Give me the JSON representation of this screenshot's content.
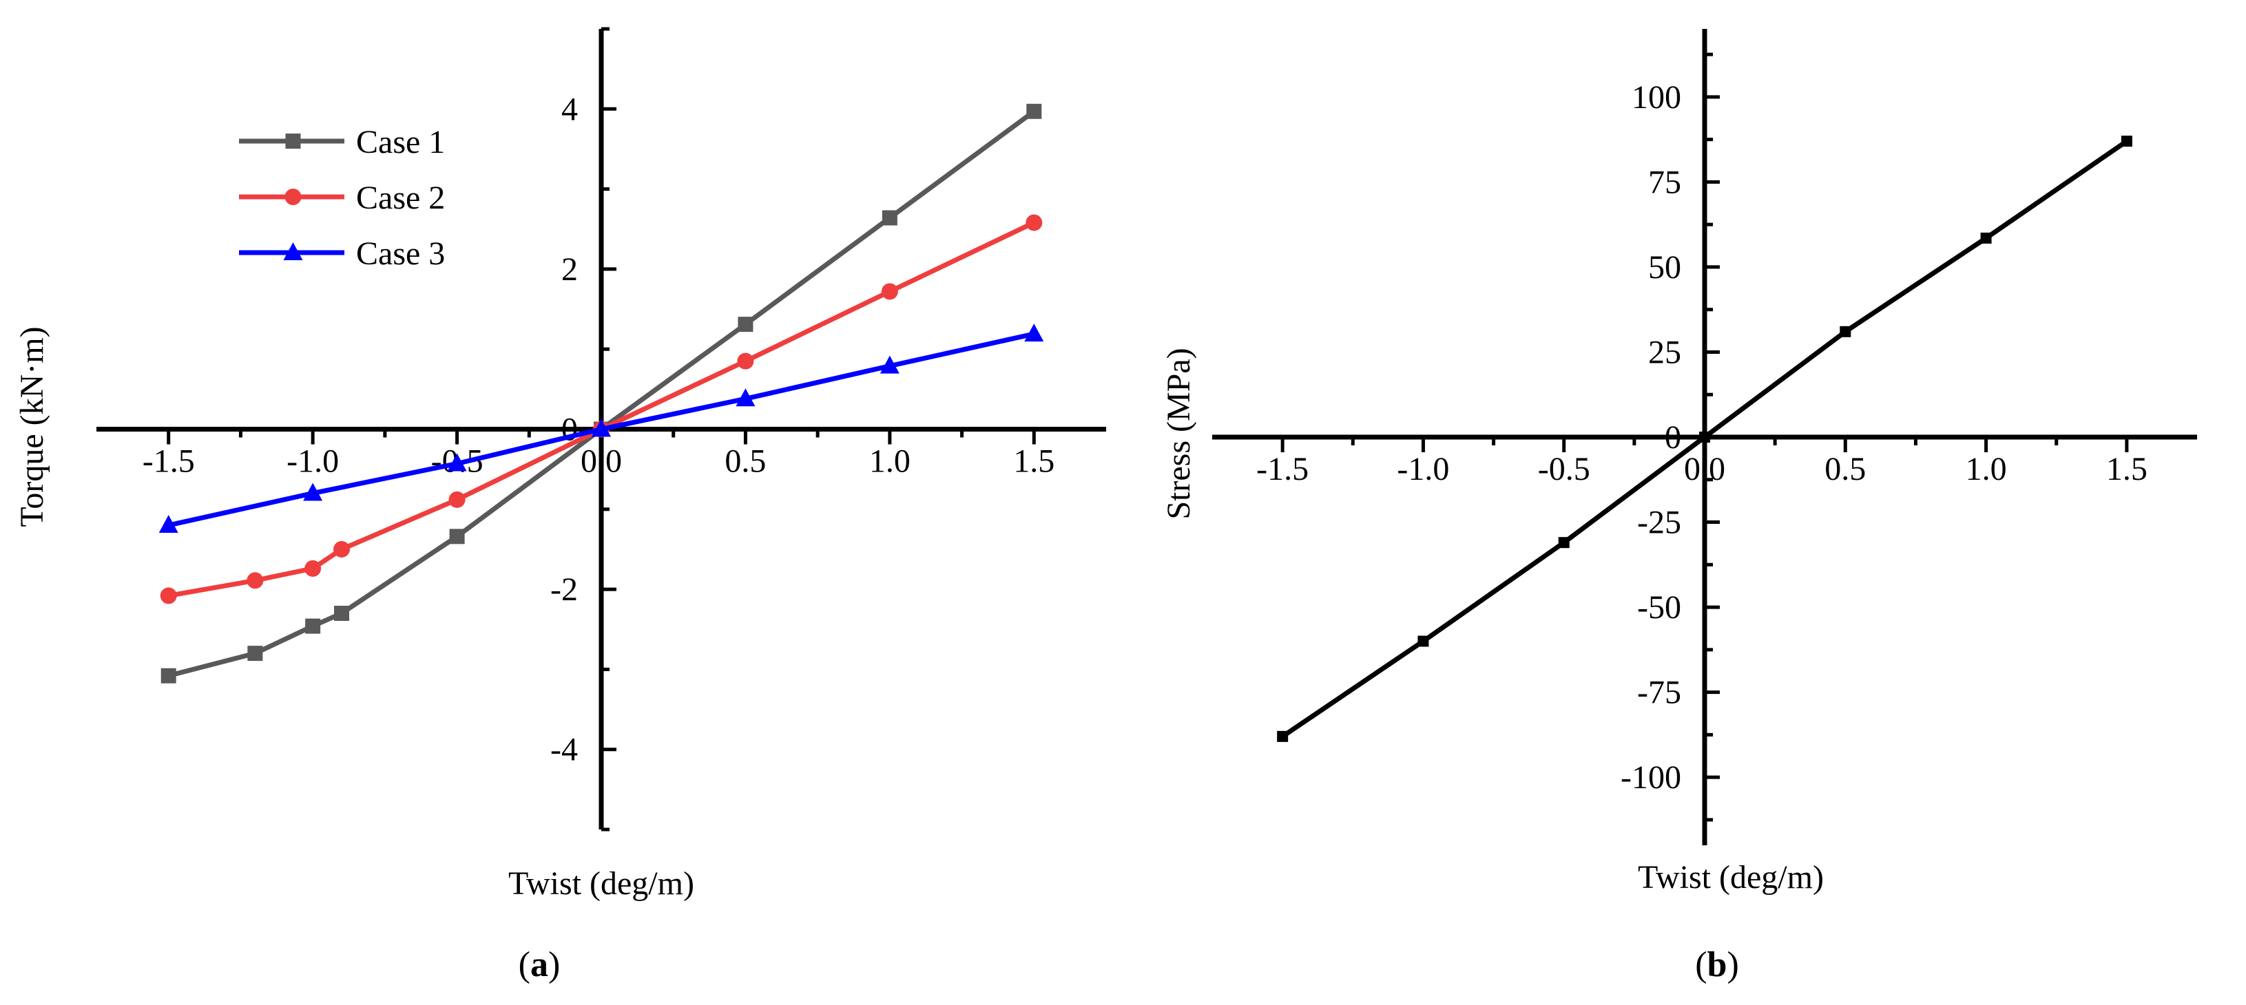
{
  "chart_data": [
    {
      "type": "line",
      "panel_label_prefix": "(",
      "panel_label": "a",
      "panel_label_suffix": ")",
      "xlabel": "Twist (deg/m)",
      "ylabel": "Torque (kN·m)",
      "xlim": [
        -1.75,
        1.75
      ],
      "ylim": [
        -5,
        5
      ],
      "xticks": [
        "-1.5",
        "-1.0",
        "-0.5",
        "0.0",
        "0.5",
        "1.0",
        "1.5"
      ],
      "xtick_values": [
        -1.5,
        -1.0,
        -0.5,
        0.0,
        0.5,
        1.0,
        1.5
      ],
      "yticks": [
        "-4",
        "-2",
        "0",
        "2",
        "4"
      ],
      "ytick_values": [
        -4,
        -2,
        0,
        2,
        4
      ],
      "legend_position": "top-left",
      "series": [
        {
          "name": "Case 1",
          "color": "#595959",
          "marker": "square",
          "x": [
            -1.5,
            -1.2,
            -1.0,
            -0.9,
            -0.5,
            0.0,
            0.5,
            1.0,
            1.5
          ],
          "y": [
            -3.08,
            -2.8,
            -2.46,
            -2.3,
            -1.34,
            0.0,
            1.31,
            2.64,
            3.97
          ]
        },
        {
          "name": "Case 2",
          "color": "#ef3e3e",
          "marker": "circle",
          "x": [
            -1.5,
            -1.2,
            -1.0,
            -0.9,
            -0.5,
            0.0,
            0.5,
            1.0,
            1.5
          ],
          "y": [
            -2.08,
            -1.89,
            -1.74,
            -1.5,
            -0.88,
            0.0,
            0.85,
            1.72,
            2.58
          ]
        },
        {
          "name": "Case 3",
          "color": "#0000ff",
          "marker": "triangle",
          "x": [
            -1.5,
            -1.0,
            -0.5,
            0.0,
            0.5,
            1.0,
            1.5
          ],
          "y": [
            -1.2,
            -0.8,
            -0.43,
            0.0,
            0.38,
            0.79,
            1.19
          ]
        }
      ]
    },
    {
      "type": "line",
      "panel_label_prefix": "(",
      "panel_label": "b",
      "panel_label_suffix": ")",
      "xlabel": "Twist (deg/m)",
      "ylabel": "Stress (MPa)",
      "xlim": [
        -1.75,
        1.75
      ],
      "ylim": [
        -120,
        120
      ],
      "xticks": [
        "-1.5",
        "-1.0",
        "-0.5",
        "0.0",
        "0.5",
        "1.0",
        "1.5"
      ],
      "xtick_values": [
        -1.5,
        -1.0,
        -0.5,
        0.0,
        0.5,
        1.0,
        1.5
      ],
      "yticks": [
        "-100",
        "-75",
        "-50",
        "-25",
        "0",
        "25",
        "50",
        "75",
        "100"
      ],
      "ytick_values": [
        -100,
        -75,
        -50,
        -25,
        0,
        25,
        50,
        75,
        100
      ],
      "series": [
        {
          "name": "Stress",
          "color": "#000000",
          "marker": "square",
          "x": [
            -1.5,
            -1.0,
            -0.5,
            0.0,
            0.5,
            1.0,
            1.5
          ],
          "y": [
            -88,
            -60,
            -31,
            0,
            31,
            58.5,
            87
          ]
        }
      ]
    }
  ]
}
